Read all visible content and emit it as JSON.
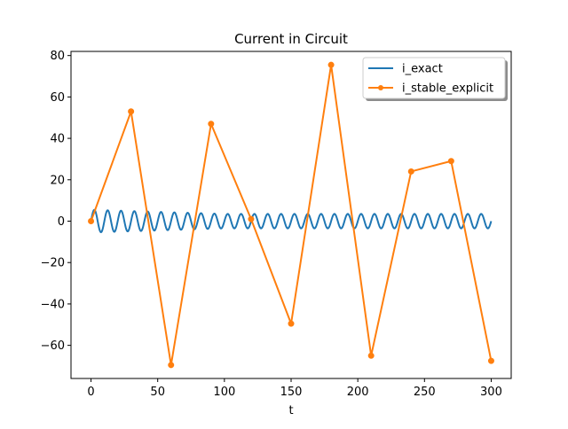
{
  "chart_data": {
    "type": "line",
    "title": "Current in Circuit",
    "xlabel": "t",
    "ylabel": "",
    "xlim": [
      -15,
      315
    ],
    "ylim": [
      -76,
      82
    ],
    "xticks": [
      0,
      50,
      100,
      150,
      200,
      250,
      300
    ],
    "xtick_labels": [
      "0",
      "50",
      "100",
      "150",
      "200",
      "250",
      "300"
    ],
    "yticks": [
      -60,
      -40,
      -20,
      0,
      20,
      40,
      60,
      80
    ],
    "ytick_labels": [
      "−60",
      "−40",
      "−20",
      "0",
      "20",
      "40",
      "60",
      "80"
    ],
    "grid": false,
    "legend_position": "top-right",
    "series": [
      {
        "name": "i_exact",
        "color": "#1f77b4",
        "marker": "none",
        "description_of_shape": "sinusoid about 0, period ~10, amplitude ~5.5 at start decaying to ~3.5",
        "x_range": [
          0,
          300
        ],
        "period": 10,
        "amplitude_start": 5.5,
        "amplitude_end": 3.5,
        "offset": 0.5
      },
      {
        "name": "i_stable_explicit",
        "color": "#ff7f0e",
        "marker": "circle",
        "x": [
          0,
          30,
          60,
          90,
          120,
          150,
          180,
          210,
          240,
          270,
          300
        ],
        "y": [
          0,
          53,
          -69.5,
          47,
          1,
          -49.5,
          75.5,
          -65,
          24,
          29,
          -67.5
        ]
      }
    ]
  }
}
